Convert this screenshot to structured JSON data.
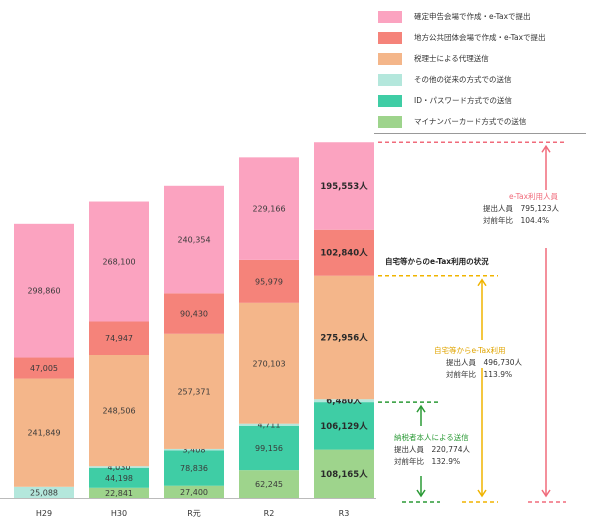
{
  "chart_data": {
    "type": "bar",
    "stacked": true,
    "categories": [
      "H29",
      "H30",
      "R元",
      "R2",
      "R3"
    ],
    "ylim": [
      0,
      1000000
    ],
    "series": [
      {
        "name": "マイナンバーカード方式での送信",
        "color": "#9ed48c",
        "values": [
          0,
          22841,
          27400,
          62245,
          108165
        ],
        "labels": [
          "",
          "22,841",
          "27,400",
          "62,245",
          "108,165人"
        ]
      },
      {
        "name": "ID・パスワード方式での送信",
        "color": "#3fcda5",
        "values": [
          0,
          44198,
          78836,
          99156,
          106129
        ],
        "labels": [
          "",
          "44,198",
          "78,836",
          "99,156",
          "106,129人"
        ]
      },
      {
        "name": "その他の従来の方式での送信",
        "color": "#b4e7dc",
        "values": [
          25088,
          4030,
          3408,
          4711,
          6480
        ],
        "labels": [
          "25,088",
          "4,030",
          "3,408",
          "4,711",
          "6,480人"
        ]
      },
      {
        "name": "税理士による代理送信",
        "color": "#f4b68a",
        "values": [
          241849,
          248506,
          257371,
          270103,
          275956
        ],
        "labels": [
          "241,849",
          "248,506",
          "257,371",
          "270,103",
          "275,956人"
        ]
      },
      {
        "name": "地方公共団体会場で作成・e-Taxで提出",
        "color": "#f5837a",
        "values": [
          47005,
          74947,
          90430,
          95979,
          102840
        ],
        "labels": [
          "47,005",
          "74,947",
          "90,430",
          "95,979",
          "102,840人"
        ]
      },
      {
        "name": "確定申告会場で作成・e-Taxで提出",
        "color": "#fba3c0",
        "values": [
          298860,
          268100,
          240354,
          229166,
          195553
        ],
        "labels": [
          "298,860",
          "268,100",
          "240,354",
          "229,166",
          "195,553人"
        ]
      }
    ],
    "legend_position": "top-right",
    "grid": false
  },
  "annotations": {
    "heading": "自宅等からのe-Tax利用の状況",
    "etax_users": {
      "title": "e-Tax利用人員",
      "line1": "提出人員　795,123人",
      "line2": "対前年比　104.4%",
      "color": "#f06b7b"
    },
    "home_etax": {
      "title": "自宅等からe-Tax利用",
      "line1": "提出人員　496,730人",
      "line2": "対前年比　113.9%",
      "color": "#f0b400"
    },
    "self_send": {
      "title": "納税者本人による送信",
      "line1": "提出人員　220,774人",
      "line2": "対前年比　132.9%",
      "color": "#2b9a36"
    }
  }
}
